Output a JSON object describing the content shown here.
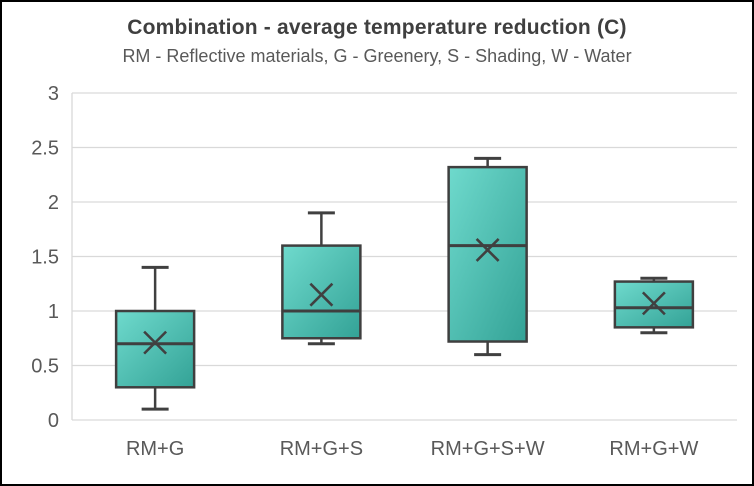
{
  "colors": {
    "box_fill_light": "#6FDACD",
    "box_fill_dark": "#33A296",
    "box_border": "#3F3F3F",
    "whisker": "#404040",
    "median_line": "#3F3F3F",
    "mean_marker": "#404040",
    "gridline": "#D9D9D9",
    "axis_line": "#D9D9D9",
    "axis_text": "#595959",
    "title_text": "#3F3F3F",
    "subtitle_text": "#595959",
    "frame_border": "#000000"
  },
  "chart_data": {
    "type": "boxplot",
    "title": "Combination - average temperature reduction (C)",
    "subtitle": "RM - Reflective materials, G - Greenery, S - Shading, W - Water",
    "categories": [
      "RM+G",
      "RM+G+S",
      "RM+G+S+W",
      "RM+G+W"
    ],
    "boxes": [
      {
        "category": "RM+G",
        "whisker_low": 0.1,
        "q1": 0.3,
        "median": 0.7,
        "mean": 0.71,
        "q3": 1.0,
        "whisker_high": 1.4
      },
      {
        "category": "RM+G+S",
        "whisker_low": 0.7,
        "q1": 0.75,
        "median": 1.0,
        "mean": 1.15,
        "q3": 1.6,
        "whisker_high": 1.9
      },
      {
        "category": "RM+G+S+W",
        "whisker_low": 0.6,
        "q1": 0.72,
        "median": 1.6,
        "mean": 1.56,
        "q3": 2.32,
        "whisker_high": 2.4
      },
      {
        "category": "RM+G+W",
        "whisker_low": 0.8,
        "q1": 0.85,
        "median": 1.03,
        "mean": 1.07,
        "q3": 1.27,
        "whisker_high": 1.3
      }
    ],
    "ylim": [
      0,
      3
    ],
    "yticks": [
      0,
      0.5,
      1,
      1.5,
      2,
      2.5,
      3
    ],
    "ytick_labels": [
      "0",
      "0.5",
      "1",
      "1.5",
      "2",
      "2.5",
      "3"
    ],
    "xlabel": "",
    "ylabel": "",
    "grid": true,
    "legend": "none"
  }
}
